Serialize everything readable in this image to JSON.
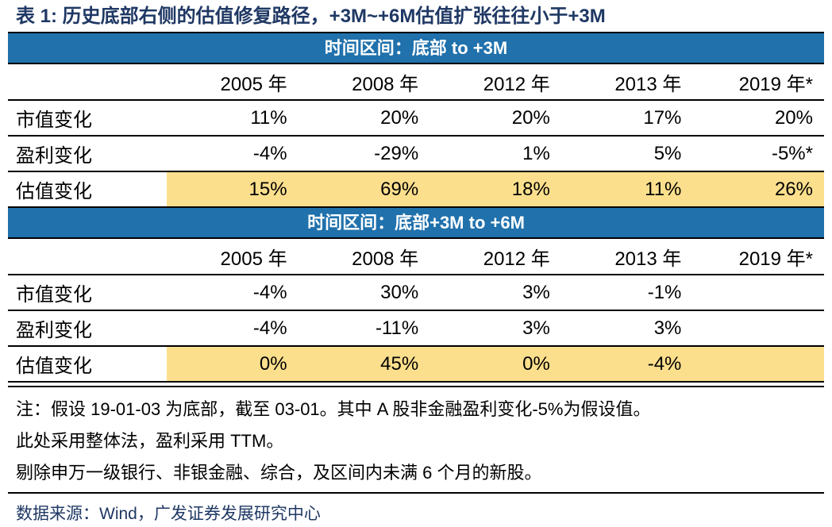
{
  "title": "表 1: 历史底部右侧的估值修复路径，+3M~+6M估值扩张往往小于+3M",
  "sections": [
    {
      "header": "时间区间：底部 to +3M",
      "col_headers": [
        "2005 年",
        "2008 年",
        "2012 年",
        "2013 年",
        "2019 年*"
      ],
      "rows": [
        {
          "label": "市值变化",
          "values": [
            "11%",
            "20%",
            "20%",
            "17%",
            "20%"
          ],
          "highlight": false
        },
        {
          "label": "盈利变化",
          "values": [
            "-4%",
            "-29%",
            "1%",
            "5%",
            "-5%*"
          ],
          "highlight": false
        },
        {
          "label": "估值变化",
          "values": [
            "15%",
            "69%",
            "18%",
            "11%",
            "26%"
          ],
          "highlight": true
        }
      ]
    },
    {
      "header": "时间区间：底部+3M to +6M",
      "col_headers": [
        "2005 年",
        "2008 年",
        "2012 年",
        "2013 年",
        "2019 年*"
      ],
      "rows": [
        {
          "label": "市值变化",
          "values": [
            "-4%",
            "30%",
            "3%",
            "-1%",
            ""
          ],
          "highlight": false
        },
        {
          "label": "盈利变化",
          "values": [
            "-4%",
            "-11%",
            "3%",
            "3%",
            ""
          ],
          "highlight": false
        },
        {
          "label": "估值变化",
          "values": [
            "0%",
            "45%",
            "0%",
            "-4%",
            ""
          ],
          "highlight": true
        }
      ]
    }
  ],
  "notes": [
    "注：假设 19-01-03 为底部，截至 03-01。其中 A 股非金融盈利变化-5%为假设值。",
    "此处采用整体法，盈利采用 TTM。",
    "剔除申万一级银行、非银金融、综合，及区间内未满 6 个月的新股。"
  ],
  "source": "数据来源：Wind，广发证券发展研究中心",
  "colors": {
    "header_bar_blue": "#2071AC",
    "highlight_yellow": "#FCDF8D",
    "title_navy": "#1F3864",
    "source_navy": "#1F3864",
    "border_black": "#000000"
  }
}
